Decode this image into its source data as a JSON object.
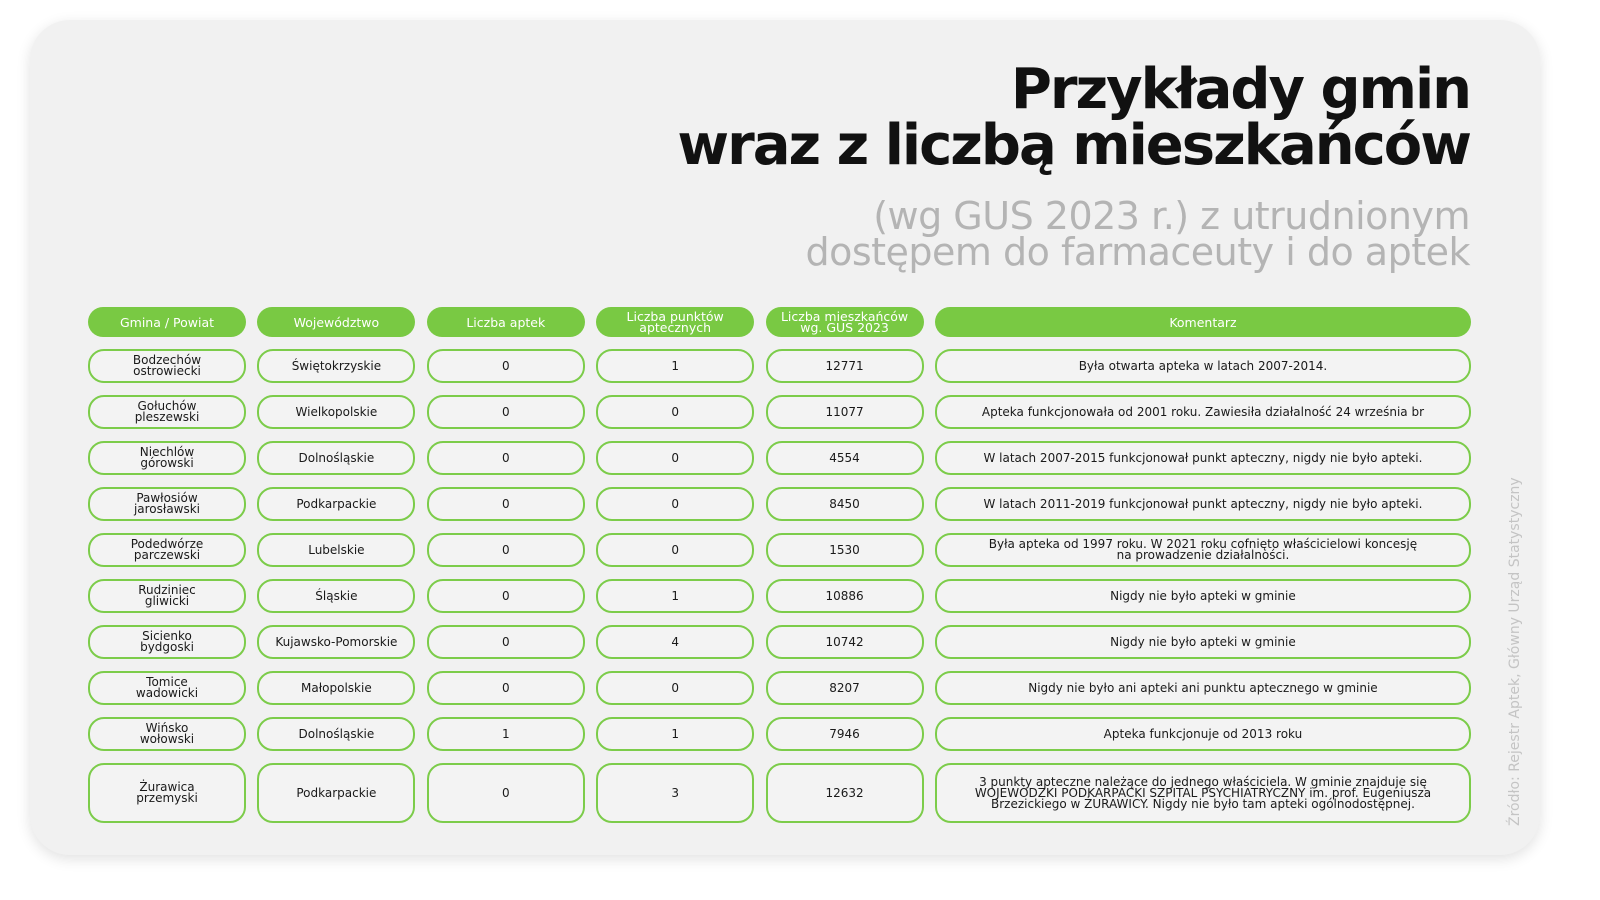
{
  "title": {
    "line1": "Przykłady gmin",
    "line2": "wraz z liczbą mieszkańców"
  },
  "subtitle": {
    "line1": "(wg GUS 2023 r.) z utrudnionym",
    "line2": "dostępem do farmaceuty i do aptek"
  },
  "accent_color": "#79c943",
  "table": {
    "headers": [
      "Gmina / Powiat",
      "Województwo",
      "Liczba aptek",
      "Liczba punktów\naptecznych",
      "Liczba mieszkańców\nwg. GUS 2023",
      "Komentarz"
    ],
    "rows": [
      [
        "Bodzechów\nostrowiecki",
        "Świętokrzyskie",
        "0",
        "1",
        "12771",
        "Była otwarta apteka w latach 2007-2014."
      ],
      [
        "Gołuchów\npleszewski",
        "Wielkopolskie",
        "0",
        "0",
        "11077",
        "Apteka funkcjonowała od 2001 roku. Zawiesiła działalność 24 września br"
      ],
      [
        "Niechlów\ngórowski",
        "Dolnośląskie",
        "0",
        "0",
        "4554",
        "W latach 2007-2015 funkcjonował punkt apteczny, nigdy nie było apteki."
      ],
      [
        "Pawłosiów\njarosławski",
        "Podkarpackie",
        "0",
        "0",
        "8450",
        "W latach 2011-2019 funkcjonował punkt apteczny, nigdy nie było apteki."
      ],
      [
        "Podedwórze\nparczewski",
        "Lubelskie",
        "0",
        "0",
        "1530",
        "Była apteka od 1997 roku. W 2021 roku cofnięto właścicielowi koncesję\nna prowadzenie działalności."
      ],
      [
        "Rudziniec\ngliwicki",
        "Śląskie",
        "0",
        "1",
        "10886",
        "Nigdy nie było apteki w gminie"
      ],
      [
        "Sicienko\nbydgoski",
        "Kujawsko-Pomorskie",
        "0",
        "4",
        "10742",
        "Nigdy nie było apteki w gminie"
      ],
      [
        "Tomice\nwadowicki",
        "Małopolskie",
        "0",
        "0",
        "8207",
        "Nigdy nie było ani apteki ani punktu aptecznego w gminie"
      ],
      [
        "Wińsko\nwołowski",
        "Dolnośląskie",
        "1",
        "1",
        "7946",
        "Apteka funkcjonuje od 2013 roku"
      ],
      [
        "Żurawica\nprzemyski",
        "Podkarpackie",
        "0",
        "3",
        "12632",
        "3 punkty apteczne należące do jednego właściciela. W gminie znajduje się\nWOJEWÓDZKI PODKARPACKI SZPITAL PSYCHIATRYCZNY im. prof. Eugeniusza\nBrzezickiego w ŻURAWICY. Nigdy nie było tam apteki ogólnodostępnej."
      ]
    ]
  },
  "source": "Źródło: Rejestr Aptek, Główny Urząd Statystyczny"
}
